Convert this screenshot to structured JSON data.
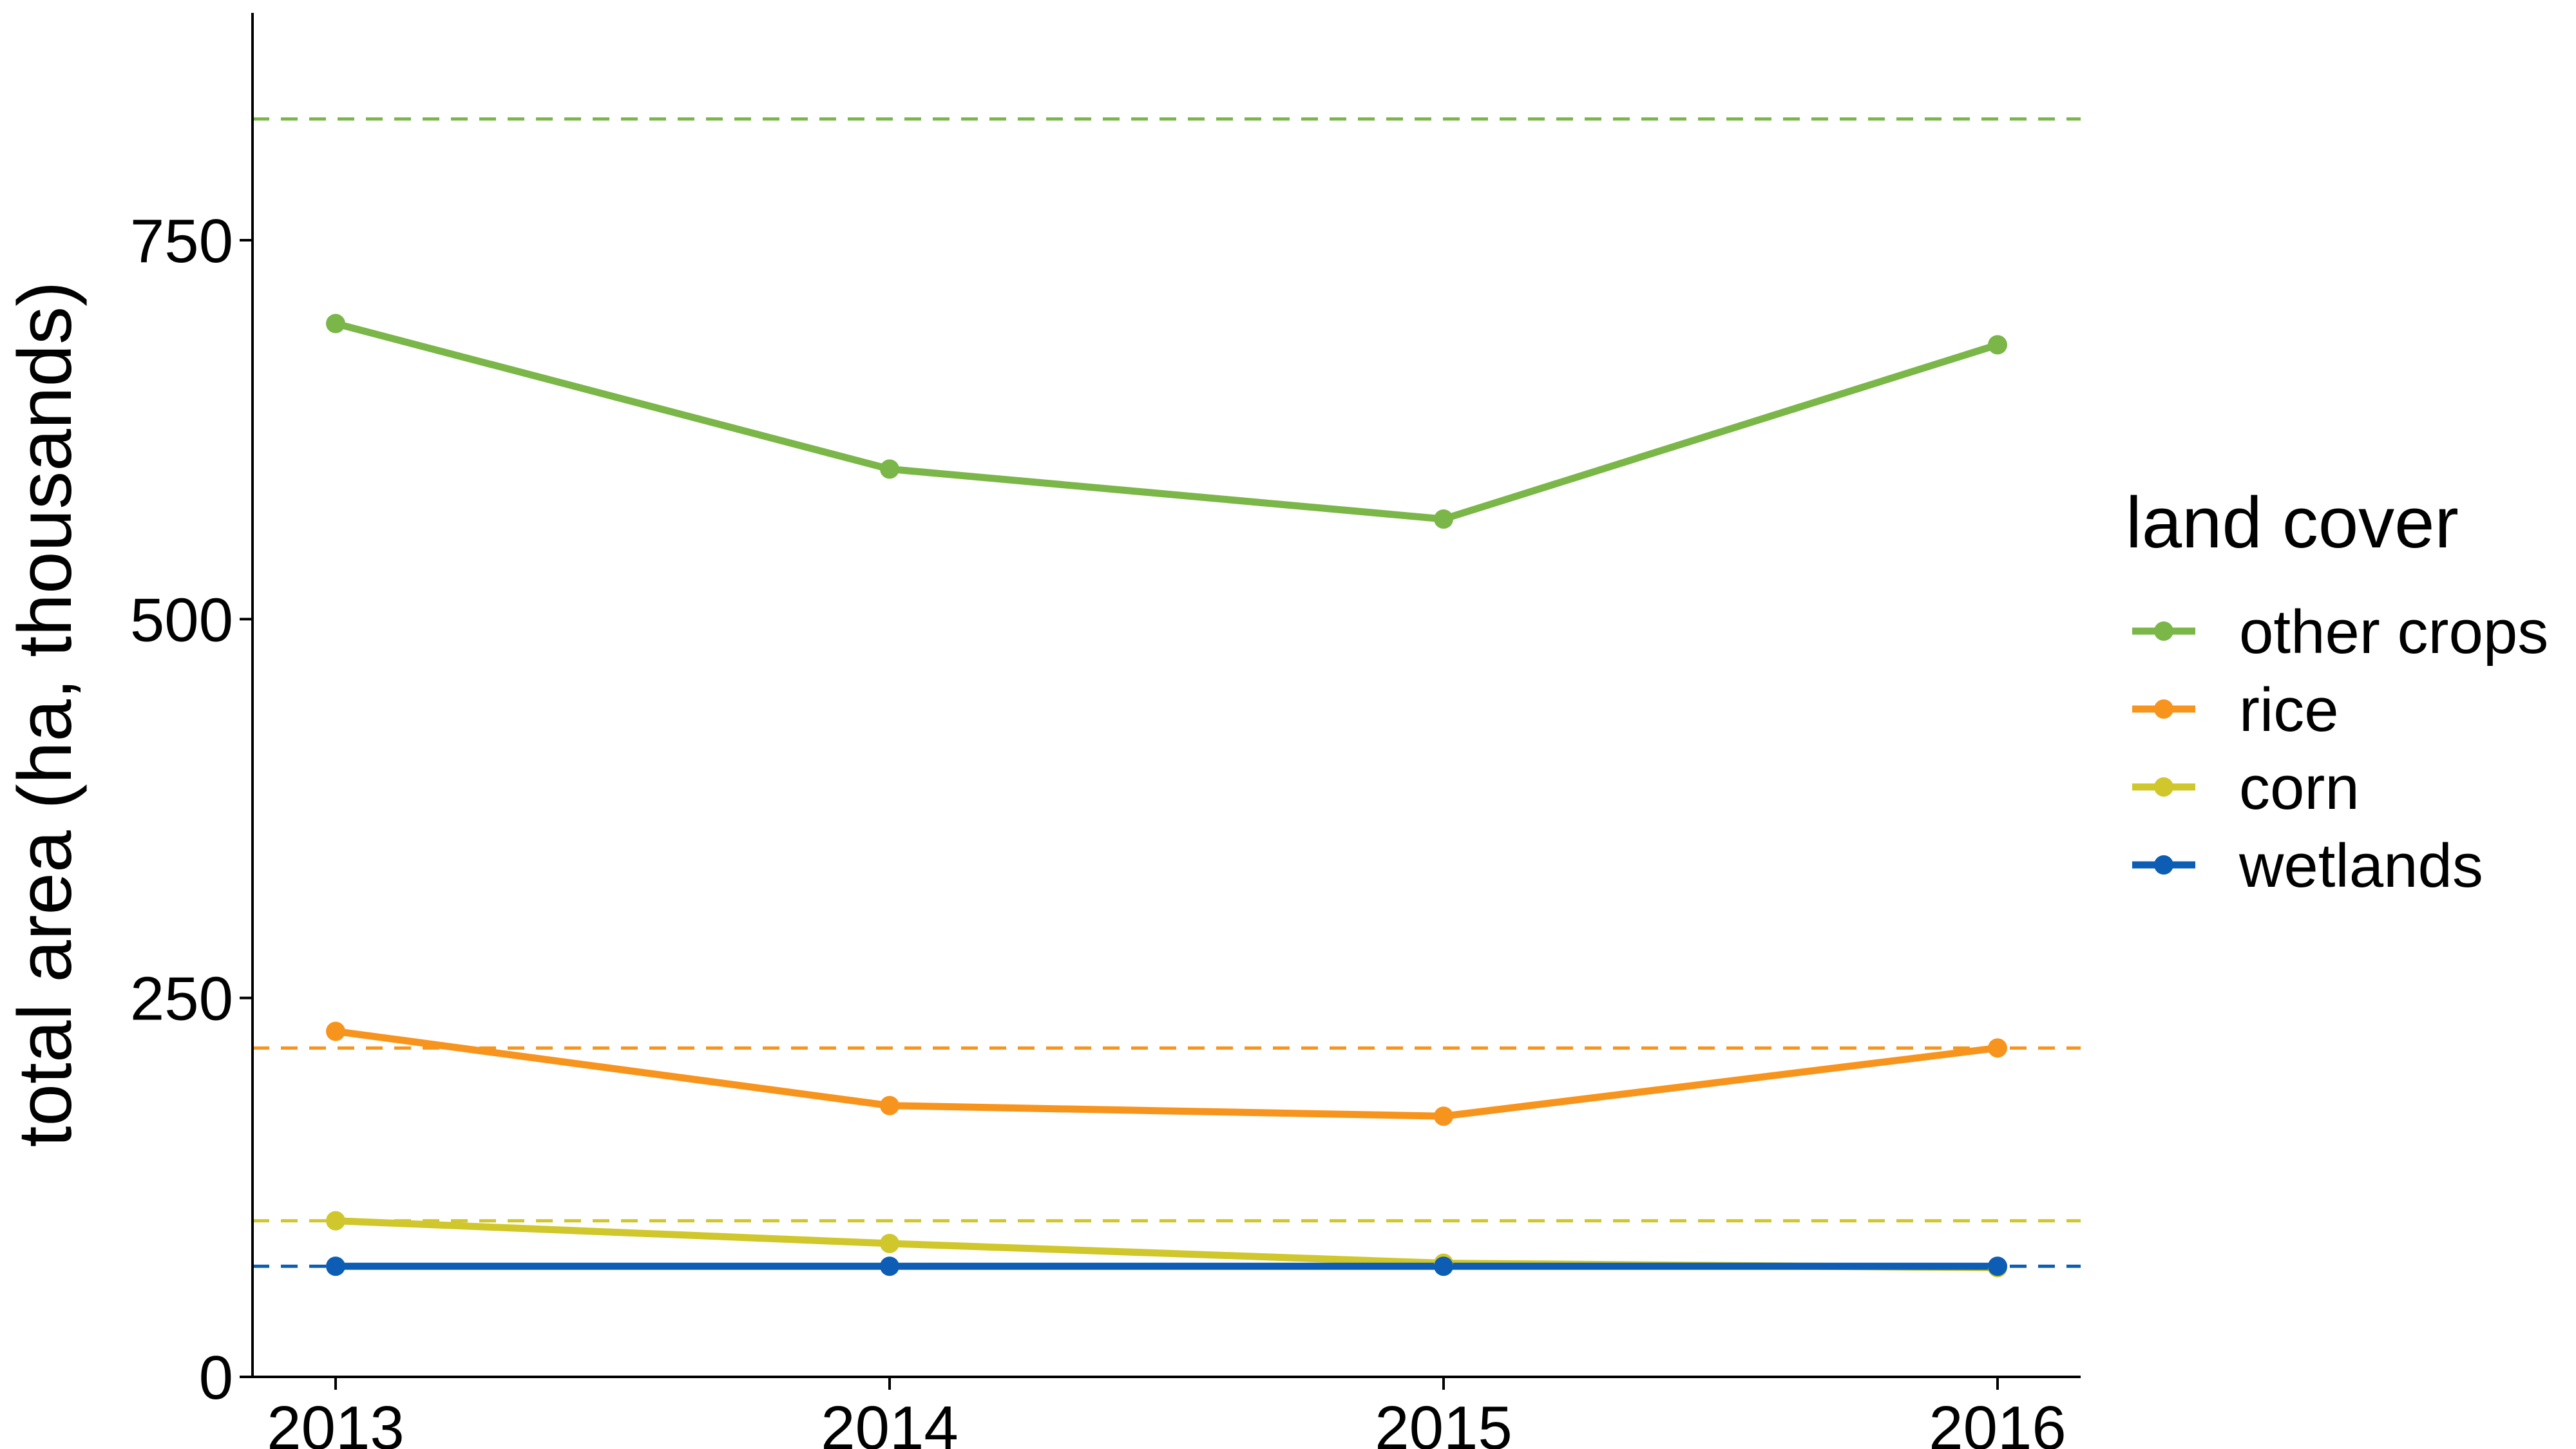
{
  "chart_data": {
    "type": "line",
    "title": "",
    "xlabel": "",
    "ylabel": "total area (ha, thousands)",
    "x": [
      2013,
      2014,
      2015,
      2016
    ],
    "xlim": [
      2012.85,
      2016.15
    ],
    "ylim": [
      0,
      900
    ],
    "yticks": [
      0,
      250,
      500,
      750
    ],
    "grid": false,
    "legend": {
      "title": "land cover",
      "placement": "right"
    },
    "series": [
      {
        "name": "other crops",
        "color": "#7ab648",
        "values": [
          695,
          599,
          566,
          681
        ],
        "reference": 830
      },
      {
        "name": "rice",
        "color": "#f7941d",
        "values": [
          228,
          179,
          172,
          217
        ],
        "reference": 217
      },
      {
        "name": "corn",
        "color": "#cfc72b",
        "values": [
          103,
          88,
          75,
          72
        ],
        "reference": 103
      },
      {
        "name": "wetlands",
        "color": "#0c5db3",
        "values": [
          73,
          73,
          73,
          73
        ],
        "reference": 73
      }
    ]
  }
}
